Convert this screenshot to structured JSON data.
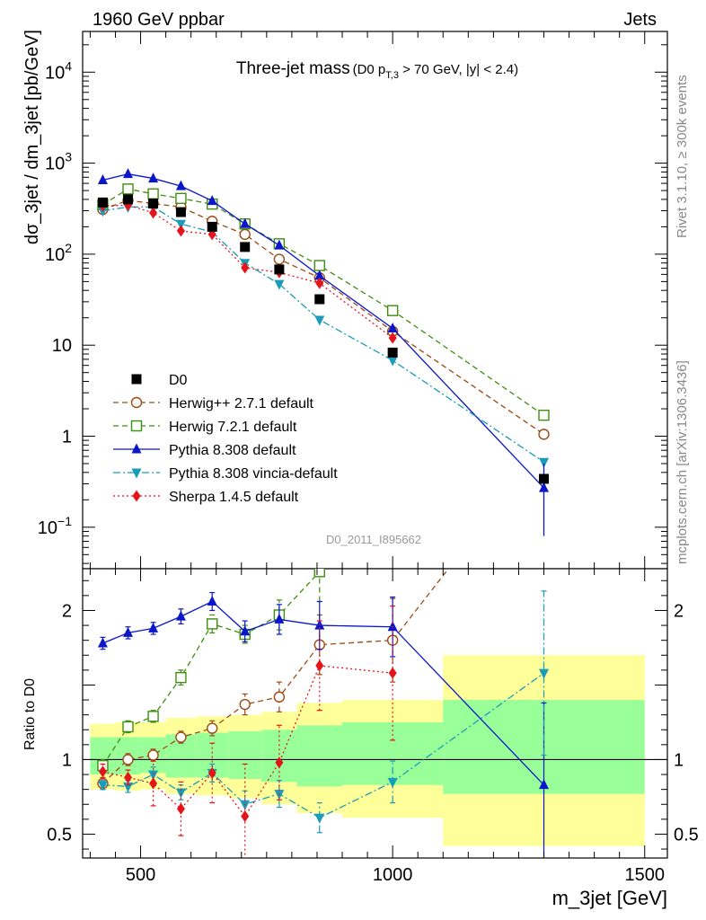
{
  "header": {
    "left": "1960 GeV ppbar",
    "right": "Jets"
  },
  "side_labels": {
    "rivet": "Rivet 3.1.10, ≥ 300k events",
    "mcplots": "mcplots.cern.ch [arXiv:1306.3436]"
  },
  "watermark": "D0_2011_I895662",
  "title": {
    "main": "Three-jet mass",
    "sub_prefix": "(D0 p",
    "sub_subscript": "T,3",
    "sub_suffix": " > 70 GeV, |y| < 2.4)"
  },
  "axes": {
    "ylabel_main": "dσ_3jet / dm_3jet [pb/GeV]",
    "ylabel_ratio": "Ratio to D0",
    "xlabel": "m_3jet [GeV]"
  },
  "chart_data": {
    "type": "line",
    "x_axis": {
      "range": [
        385,
        1545
      ],
      "ticks": [
        500,
        1000,
        1500
      ]
    },
    "main_y_axis": {
      "scale": "log",
      "range": [
        0.035,
        28000
      ],
      "tick_labels": [
        {
          "v": 0.1,
          "base": "10",
          "exp": "−1"
        },
        {
          "v": 1,
          "base": "1",
          "exp": ""
        },
        {
          "v": 10,
          "base": "10",
          "exp": ""
        },
        {
          "v": 100,
          "base": "10",
          "exp": "2"
        },
        {
          "v": 1000,
          "base": "10",
          "exp": "3"
        },
        {
          "v": 10000,
          "base": "10",
          "exp": "4"
        }
      ]
    },
    "ratio_y_axis": {
      "scale": "linear",
      "range": [
        0.34,
        2.28
      ],
      "ticks": [
        0.5,
        1,
        1.5,
        2
      ],
      "tick_labels": [
        "0.5",
        "1",
        "",
        "2"
      ]
    },
    "bin_edges": [
      400,
      450,
      500,
      550,
      610,
      675,
      740,
      810,
      900,
      1100,
      1500
    ],
    "bin_centers": [
      425,
      475,
      525,
      580,
      642,
      707,
      775,
      855,
      1000,
      1300
    ],
    "band_outer": [
      [
        0.8,
        1.24
      ],
      [
        0.79,
        1.25
      ],
      [
        0.8,
        1.25
      ],
      [
        0.77,
        1.28
      ],
      [
        0.76,
        1.29
      ],
      [
        0.74,
        1.3
      ],
      [
        0.7,
        1.32
      ],
      [
        0.64,
        1.38
      ],
      [
        0.61,
        1.4
      ],
      [
        0.42,
        1.7
      ]
    ],
    "band_inner": [
      [
        0.9,
        1.15
      ],
      [
        0.9,
        1.15
      ],
      [
        0.91,
        1.15
      ],
      [
        0.88,
        1.17
      ],
      [
        0.88,
        1.18
      ],
      [
        0.87,
        1.19
      ],
      [
        0.85,
        1.2
      ],
      [
        0.82,
        1.23
      ],
      [
        0.83,
        1.25
      ],
      [
        0.77,
        1.4
      ]
    ],
    "data": {
      "name": "D0",
      "color": "#000000",
      "values": [
        370,
        400,
        360,
        290,
        200,
        120,
        68,
        32,
        8.3,
        0.34
      ]
    },
    "series": [
      {
        "name": "Herwig++ 2.7.1 default",
        "color": "#9C4A14",
        "marker": "circle-open",
        "dash": "6,4",
        "values": [
          310,
          390,
          360,
          330,
          230,
          165,
          88,
          55,
          14.2,
          1.05
        ],
        "ratio": [
          0.84,
          1.0,
          1.03,
          1.15,
          1.21,
          1.37,
          1.42,
          1.77,
          1.8,
          3.1
        ],
        "ratio_err": [
          0.04,
          0.04,
          0.04,
          0.04,
          0.05,
          0.07,
          0.1,
          0.2,
          0.28,
          0.5
        ]
      },
      {
        "name": "Herwig 7.2.1 default",
        "color": "#3E8E0F",
        "marker": "square-open",
        "dash": "6,4",
        "values": [
          350,
          520,
          460,
          410,
          355,
          215,
          130,
          75,
          24,
          1.7
        ],
        "ratio": [
          0.96,
          1.22,
          1.29,
          1.55,
          1.91,
          1.84,
          1.97,
          2.26,
          2.9,
          5.0
        ],
        "ratio_err": [
          0.04,
          0.04,
          0.04,
          0.05,
          0.06,
          0.06,
          0.1,
          0.2,
          0.4,
          0.8
        ]
      },
      {
        "name": "Pythia 8.308 default",
        "color": "#0A16C8",
        "marker": "triangle-up",
        "dash": "",
        "values": [
          650,
          760,
          680,
          560,
          385,
          215,
          125,
          58,
          15.3,
          0.27
        ],
        "ratio": [
          1.78,
          1.85,
          1.88,
          1.96,
          2.06,
          1.86,
          1.94,
          1.9,
          1.89,
          0.83
        ],
        "ratio_err": [
          0.04,
          0.04,
          0.04,
          0.05,
          0.06,
          0.07,
          0.1,
          0.16,
          0.2,
          0.55
        ]
      },
      {
        "name": "Pythia 8.308 vincia-default",
        "color": "#1A9BB7",
        "marker": "triangle-down",
        "dash": "8,3,2,3",
        "values": [
          300,
          330,
          330,
          215,
          175,
          80,
          47,
          19,
          6.8,
          0.52
        ],
        "ratio": [
          0.83,
          0.82,
          0.9,
          0.78,
          0.91,
          0.7,
          0.77,
          0.61,
          0.85,
          1.58
        ],
        "ratio_err": [
          0.03,
          0.04,
          0.05,
          0.05,
          0.06,
          0.09,
          0.09,
          0.1,
          0.14,
          0.55
        ]
      },
      {
        "name": "Sherpa 1.4.5 default",
        "color": "#E4141B",
        "marker": "diamond",
        "dash": "2,3",
        "values": [
          340,
          345,
          285,
          180,
          165,
          71,
          63,
          48,
          12,
          0.0
        ],
        "ratio": [
          0.92,
          0.88,
          0.84,
          0.67,
          0.91,
          0.62,
          0.98,
          1.63,
          1.58,
          0.0
        ],
        "ratio_err": [
          0.05,
          0.05,
          0.15,
          0.18,
          0.2,
          0.35,
          0.25,
          0.3,
          0.45,
          0.0
        ]
      }
    ]
  }
}
